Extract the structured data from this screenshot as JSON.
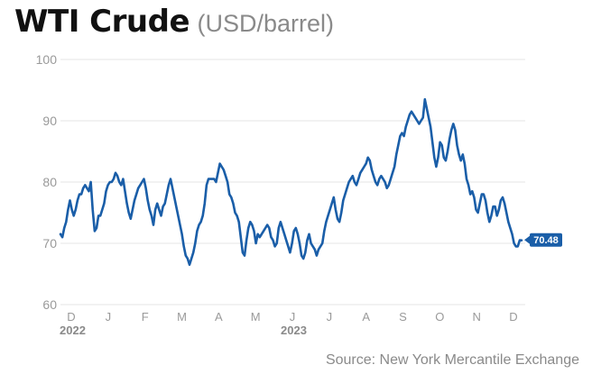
{
  "title": "WTI Crude",
  "unit": "(USD/barrel)",
  "source": "Source: New York Mercantile Exchange",
  "colors": {
    "line": "#1a5ea8",
    "label_bg": "#1a5ea8",
    "grid": "#e6e6e6",
    "axis_text": "#9a9a9a",
    "year_text": "#8a8a8a"
  },
  "chart_data": {
    "type": "line",
    "title": "WTI Crude",
    "xlabel": "",
    "ylabel": "",
    "ylim": [
      60,
      100
    ],
    "yticks": [
      60,
      70,
      80,
      90,
      100
    ],
    "grid": true,
    "x_tick_labels": [
      "D",
      "J",
      "F",
      "M",
      "A",
      "M",
      "J",
      "J",
      "A",
      "S",
      "O",
      "N",
      "D"
    ],
    "year_labels": [
      {
        "text": "2022",
        "at_tick": 0
      },
      {
        "text": "2023",
        "at_tick": 6
      }
    ],
    "last_value_label": "70.48",
    "series": [
      {
        "values": [
          71.5,
          71.0,
          72.5,
          73.5,
          75.5,
          77.0,
          75.5,
          74.5,
          75.5,
          77.0,
          78.0,
          78.0,
          79.0,
          79.5,
          79.0,
          78.5,
          80.0,
          75.5,
          72.0,
          72.5,
          74.5,
          74.5,
          75.5,
          76.5,
          78.5,
          79.5,
          80.0,
          80.0,
          80.5,
          81.5,
          81.0,
          80.0,
          79.5,
          80.5,
          78.5,
          76.5,
          75.0,
          74.0,
          75.5,
          77.0,
          78.0,
          79.0,
          79.5,
          80.0,
          80.5,
          79.0,
          77.0,
          75.5,
          74.5,
          73.0,
          75.5,
          76.5,
          75.5,
          74.5,
          76.0,
          76.5,
          78.0,
          79.5,
          80.5,
          79.0,
          77.5,
          76.0,
          74.5,
          73.0,
          71.5,
          69.5,
          68.0,
          67.5,
          66.5,
          67.5,
          68.5,
          70.0,
          72.0,
          73.0,
          73.5,
          74.5,
          76.5,
          79.5,
          80.5,
          80.5,
          80.5,
          80.5,
          80.0,
          81.5,
          83.0,
          82.5,
          82.0,
          81.0,
          80.0,
          78.0,
          77.5,
          76.5,
          75.0,
          74.5,
          73.5,
          71.0,
          68.5,
          68.0,
          70.5,
          72.5,
          73.5,
          73.0,
          72.0,
          70.0,
          71.5,
          71.0,
          71.5,
          72.0,
          72.5,
          73.0,
          72.5,
          71.0,
          70.5,
          69.5,
          70.0,
          72.5,
          73.5,
          72.5,
          71.5,
          70.5,
          69.5,
          68.5,
          70.0,
          72.0,
          72.5,
          71.5,
          70.0,
          68.0,
          67.5,
          68.5,
          70.5,
          71.5,
          70.0,
          69.5,
          69.0,
          68.0,
          69.0,
          69.5,
          70.0,
          72.0,
          73.5,
          74.5,
          75.5,
          76.5,
          77.5,
          75.5,
          74.0,
          73.5,
          75.0,
          77.0,
          78.0,
          79.0,
          80.0,
          80.5,
          81.0,
          80.0,
          79.5,
          80.5,
          81.5,
          82.0,
          82.5,
          83.0,
          84.0,
          83.5,
          82.0,
          81.0,
          80.0,
          79.5,
          80.5,
          81.0,
          80.5,
          80.0,
          79.0,
          79.5,
          80.5,
          81.5,
          82.5,
          84.5,
          86.0,
          87.5,
          88.0,
          87.5,
          89.0,
          90.0,
          91.0,
          91.5,
          91.0,
          90.5,
          90.0,
          89.5,
          90.0,
          90.5,
          93.5,
          92.0,
          90.5,
          89.0,
          86.5,
          84.0,
          82.5,
          84.0,
          86.5,
          86.0,
          84.0,
          83.5,
          85.0,
          87.0,
          88.5,
          89.5,
          88.5,
          86.0,
          84.5,
          83.5,
          84.5,
          83.0,
          80.5,
          79.5,
          78.0,
          78.5,
          77.5,
          75.5,
          75.0,
          76.5,
          78.0,
          78.0,
          77.0,
          75.0,
          73.5,
          74.5,
          76.0,
          76.0,
          74.5,
          75.5,
          77.0,
          77.5,
          76.5,
          75.0,
          73.5,
          72.5,
          71.5,
          70.0,
          69.5,
          69.5,
          70.5,
          70.48
        ]
      }
    ]
  }
}
